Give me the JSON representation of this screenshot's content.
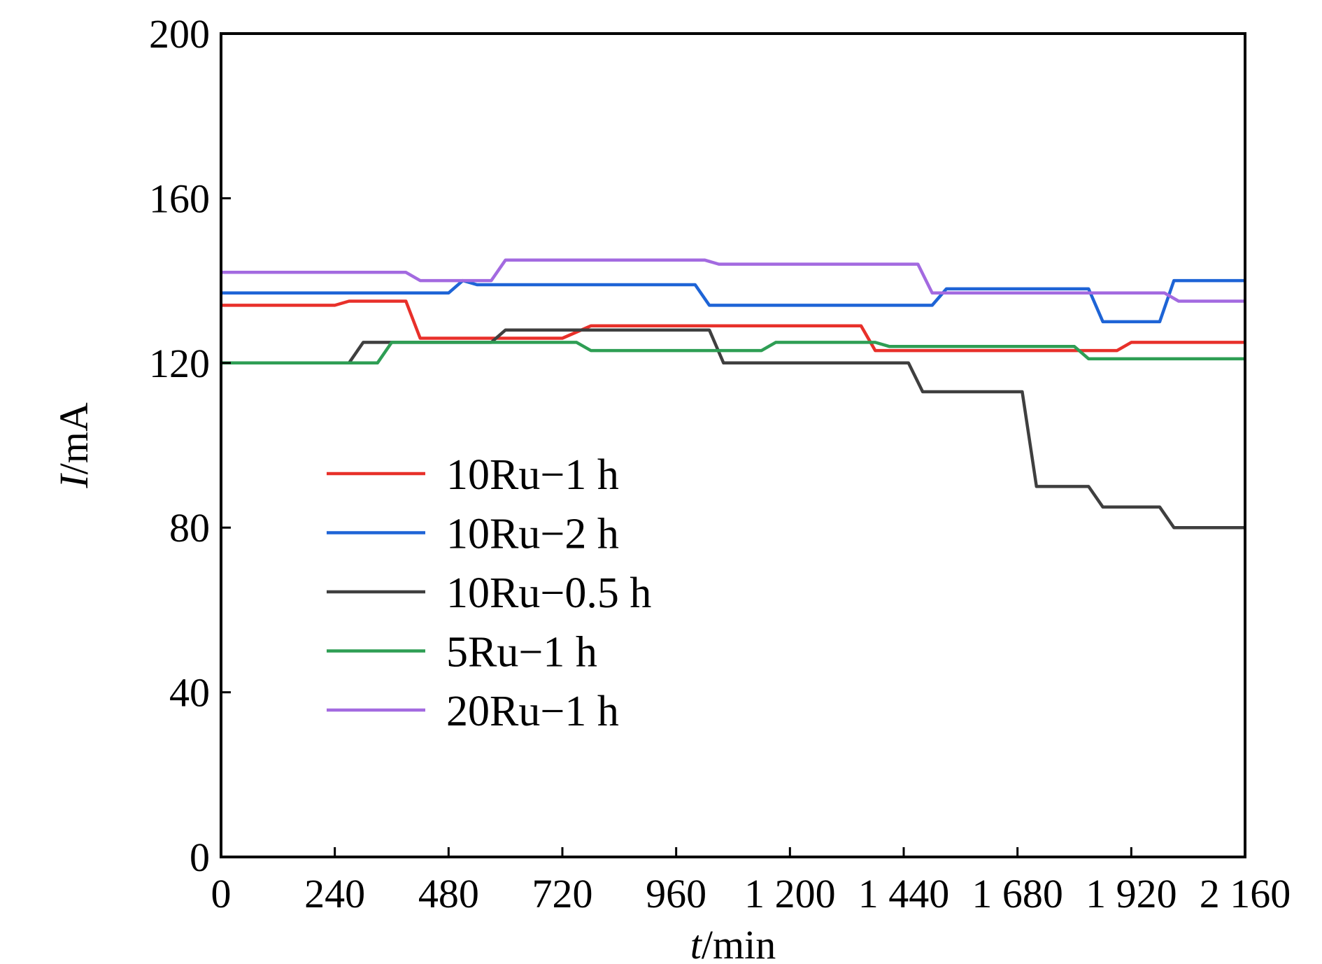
{
  "chart_data": {
    "type": "line",
    "xlabel": {
      "var": "t",
      "unit": "/min"
    },
    "ylabel": {
      "var": "I",
      "unit": "/mA"
    },
    "xlim": [
      0,
      2160
    ],
    "ylim": [
      0,
      200
    ],
    "x_ticks": [
      0,
      240,
      480,
      720,
      960,
      1200,
      1440,
      1680,
      1920,
      2160
    ],
    "x_tick_labels": [
      "0",
      "240",
      "480",
      "720",
      "960",
      "1 200",
      "1 440",
      "1 680",
      "1 920",
      "2 160"
    ],
    "y_ticks": [
      0,
      40,
      80,
      120,
      160,
      200
    ],
    "y_tick_labels": [
      "0",
      "40",
      "80",
      "120",
      "160",
      "200"
    ],
    "grid": false,
    "legend_position": "left",
    "series": [
      {
        "name": "10Ru−1 h",
        "color": "#e8302a",
        "x": [
          0,
          240,
          270,
          390,
          420,
          720,
          780,
          1350,
          1380,
          1890,
          1920,
          2160
        ],
        "y": [
          134,
          134,
          135,
          135,
          126,
          126,
          129,
          129,
          123,
          123,
          125,
          125
        ]
      },
      {
        "name": "10Ru−2 h",
        "color": "#1e64d6",
        "x": [
          0,
          480,
          510,
          540,
          1000,
          1030,
          1500,
          1530,
          1830,
          1860,
          1980,
          2010,
          2160
        ],
        "y": [
          137,
          137,
          140,
          139,
          139,
          134,
          134,
          138,
          138,
          130,
          130,
          140,
          140
        ]
      },
      {
        "name": "10Ru−0.5 h",
        "color": "#3f3f3f",
        "x": [
          0,
          270,
          300,
          570,
          600,
          1030,
          1060,
          1450,
          1480,
          1690,
          1720,
          1830,
          1860,
          1980,
          2010,
          2160
        ],
        "y": [
          120,
          120,
          125,
          125,
          128,
          128,
          120,
          120,
          113,
          113,
          90,
          90,
          85,
          85,
          80,
          80
        ]
      },
      {
        "name": "5Ru−1 h",
        "color": "#2e9e54",
        "x": [
          0,
          330,
          360,
          750,
          780,
          1140,
          1170,
          1380,
          1410,
          1800,
          1830,
          2160
        ],
        "y": [
          120,
          120,
          125,
          125,
          123,
          123,
          125,
          125,
          124,
          124,
          121,
          121
        ]
      },
      {
        "name": "20Ru−1 h",
        "color": "#a36ae0",
        "x": [
          0,
          390,
          420,
          570,
          600,
          1020,
          1050,
          1470,
          1500,
          1990,
          2020,
          2160
        ],
        "y": [
          142,
          142,
          140,
          140,
          145,
          145,
          144,
          144,
          137,
          137,
          135,
          135
        ]
      }
    ]
  }
}
